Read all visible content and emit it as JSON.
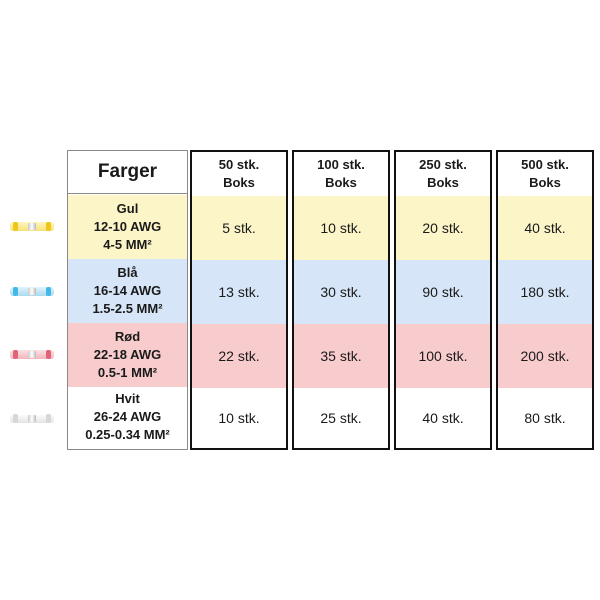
{
  "table": {
    "first_header": "Farger",
    "rows": [
      {
        "line1": "Gul",
        "line2": "12-10 AWG",
        "line3": "4-5 MM²"
      },
      {
        "line1": "Blå",
        "line2": "16-14 AWG",
        "line3": "1.5-2.5 MM²"
      },
      {
        "line1": "Rød",
        "line2": "22-18 AWG",
        "line3": "0.5-1 MM²"
      },
      {
        "line1": "Hvit",
        "line2": "26-24 AWG",
        "line3": "0.25-0.34 MM²"
      }
    ],
    "columns": [
      {
        "h1": "50 stk.",
        "h2": "Boks",
        "values": [
          "5 stk.",
          "13 stk.",
          "22 stk.",
          "10 stk."
        ]
      },
      {
        "h1": "100 stk.",
        "h2": "Boks",
        "values": [
          "10 stk.",
          "30 stk.",
          "35 stk.",
          "25 stk."
        ]
      },
      {
        "h1": "250 stk.",
        "h2": "Boks",
        "values": [
          "20 stk.",
          "90 stk.",
          "100 stk.",
          "40 stk."
        ]
      },
      {
        "h1": "500 stk.",
        "h2": "Boks",
        "values": [
          "40 stk.",
          "180 stk.",
          "200 stk.",
          "80 stk."
        ]
      }
    ]
  },
  "connector_icons": [
    {
      "name": "yellow-connector-icon",
      "color": "#f5d43a"
    },
    {
      "name": "blue-connector-icon",
      "color": "#4fb3e6"
    },
    {
      "name": "red-connector-icon",
      "color": "#e2707a"
    },
    {
      "name": "white-connector-icon",
      "color": "#e4e4e4"
    }
  ]
}
